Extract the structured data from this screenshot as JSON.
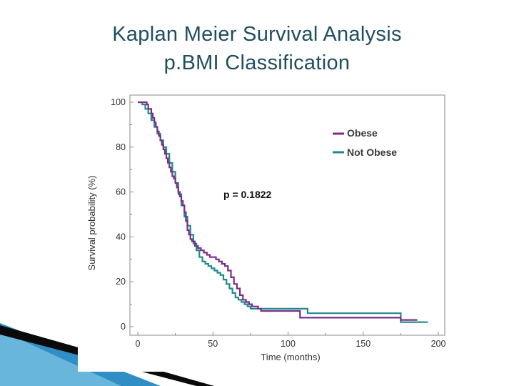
{
  "slide": {
    "title_line_1": "Kaplan Meier Survival Analysis",
    "title_line_2": "p.BMI Classification"
  },
  "colors": {
    "title": "#1f4e5f",
    "obese": "#7b2d86",
    "not_obese": "#1f8a8a",
    "ribbon_dark": "#0a0a0a",
    "ribbon_blue": "#2f8fc4"
  },
  "chart_data": {
    "type": "line",
    "subtype": "kaplan-meier-step",
    "title": "Kaplan Meier Survival Analysis p.BMI Classification",
    "xlabel": "Time (months)",
    "ylabel": "Survival probability (%)",
    "xlim": [
      0,
      200
    ],
    "ylim": [
      0,
      100
    ],
    "xticks": [
      0,
      50,
      100,
      150,
      200
    ],
    "yticks": [
      0,
      20,
      40,
      60,
      80,
      100
    ],
    "grid": false,
    "legend_position": "top-right",
    "annotation": "p = 0.1822",
    "series": [
      {
        "name": "Obese",
        "color": "#7b2d86",
        "x": [
          0,
          4,
          6,
          7,
          9,
          10,
          11,
          12,
          13,
          14,
          15,
          16,
          17,
          18,
          19,
          20,
          21,
          22,
          23,
          24,
          25,
          26,
          27,
          28,
          29,
          30,
          31,
          32,
          33,
          34,
          35,
          36,
          38,
          40,
          42,
          44,
          46,
          48,
          50,
          52,
          54,
          56,
          58,
          60,
          62,
          64,
          66,
          68,
          70,
          72,
          74,
          76,
          78,
          80,
          82,
          108,
          125,
          175,
          186
        ],
        "y": [
          100,
          100,
          99,
          97,
          95,
          93,
          91,
          89,
          87,
          85,
          83,
          81,
          79,
          77,
          75,
          73,
          71,
          69,
          67,
          66,
          64,
          62,
          60,
          58,
          56,
          54,
          51,
          47,
          43,
          41,
          39,
          38,
          36,
          35,
          34,
          33,
          32,
          31,
          31,
          30,
          29,
          28,
          27,
          25,
          22,
          19,
          17,
          14,
          12,
          11,
          10,
          9,
          9,
          8,
          7,
          4,
          4,
          3,
          3
        ]
      },
      {
        "name": "Not Obese",
        "color": "#1f8a8a",
        "x": [
          0,
          3,
          5,
          7,
          9,
          11,
          13,
          15,
          17,
          19,
          21,
          23,
          25,
          27,
          29,
          31,
          33,
          35,
          37,
          39,
          41,
          43,
          45,
          47,
          49,
          51,
          53,
          55,
          57,
          59,
          61,
          63,
          65,
          67,
          69,
          71,
          73,
          75,
          80,
          113,
          125,
          175,
          193
        ],
        "y": [
          100,
          99,
          97,
          95,
          92,
          89,
          86,
          83,
          80,
          77,
          73,
          69,
          64,
          59,
          54,
          49,
          45,
          41,
          37,
          34,
          31,
          29,
          28,
          27,
          26,
          25,
          24,
          23,
          21,
          19,
          17,
          15,
          13,
          12,
          11,
          10,
          9,
          8,
          8,
          6,
          6,
          2,
          2
        ]
      }
    ]
  }
}
